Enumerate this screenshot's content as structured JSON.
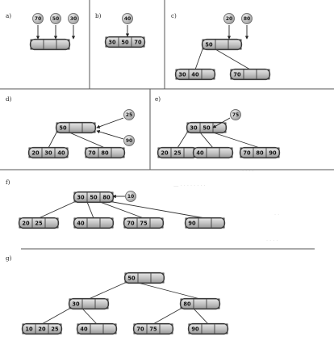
{
  "panels": [
    {
      "label": "a)",
      "incoming": [
        "70",
        "50",
        "30"
      ],
      "nodes": [
        [
          "",
          "",
          ""
        ]
      ]
    },
    {
      "label": "b)",
      "incoming": [
        "40"
      ],
      "nodes": [
        [
          "30",
          "50",
          "70"
        ]
      ]
    },
    {
      "label": "c)",
      "incoming": [
        "20",
        "80"
      ],
      "nodes": [
        [
          "50",
          "",
          ""
        ],
        [
          "30",
          "40",
          ""
        ],
        [
          "70",
          "",
          ""
        ]
      ]
    },
    {
      "label": "d)",
      "incoming": [
        "25",
        "90"
      ],
      "nodes": [
        [
          "50",
          "",
          ""
        ],
        [
          "20",
          "30",
          "40"
        ],
        [
          "70",
          "80",
          ""
        ]
      ]
    },
    {
      "label": "e)",
      "incoming": [
        "75"
      ],
      "nodes": [
        [
          "30",
          "50",
          ""
        ],
        [
          "20",
          "25",
          ""
        ],
        [
          "40",
          "",
          ""
        ],
        [
          "70",
          "80",
          "90"
        ]
      ]
    },
    {
      "label": "f)",
      "incoming": [
        "10"
      ],
      "nodes": [
        [
          "30",
          "50",
          "80"
        ],
        [
          "20",
          "25",
          ""
        ],
        [
          "40",
          "",
          ""
        ],
        [
          "70",
          "75",
          ""
        ],
        [
          "90",
          "",
          ""
        ]
      ]
    },
    {
      "label": "g)",
      "incoming": [],
      "nodes": [
        [
          "50",
          "",
          ""
        ],
        [
          "30",
          "",
          ""
        ],
        [
          "80",
          "",
          ""
        ],
        [
          "10",
          "20",
          "25"
        ],
        [
          "40",
          "",
          ""
        ],
        [
          "70",
          "75",
          ""
        ],
        [
          "90",
          "",
          ""
        ]
      ]
    }
  ],
  "colors": {
    "node": "#bdbdbd",
    "ball": "#c9c9c9",
    "outline": "#3a3a3a"
  }
}
